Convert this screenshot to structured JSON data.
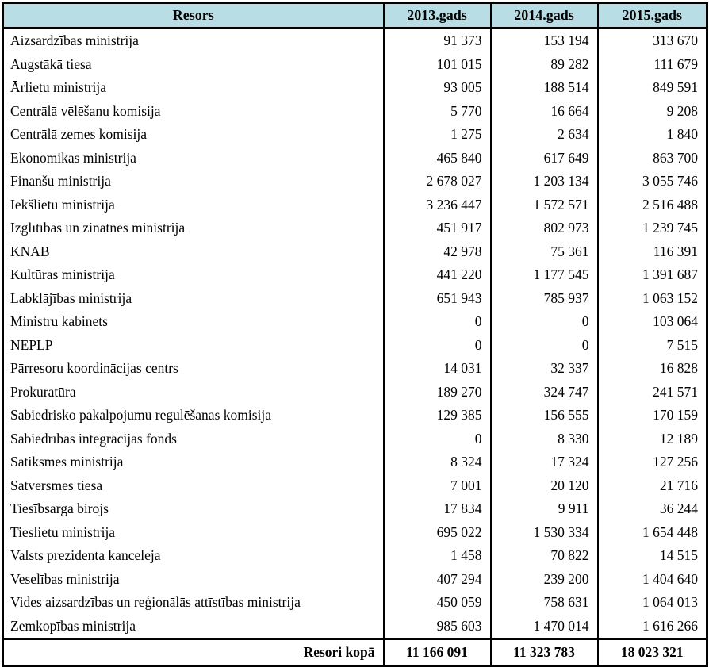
{
  "colors": {
    "header_background": "#b8dde4",
    "border": "#000000",
    "page_background": "#ffffff",
    "text": "#000000"
  },
  "chart_data": {
    "type": "table",
    "title": "",
    "columns": [
      "Resors",
      "2013.gads",
      "2014.gads",
      "2015.gads"
    ],
    "rows": [
      {
        "name": "Aizsardzības ministrija",
        "values": [
          "91 373",
          "153 194",
          "313 670"
        ]
      },
      {
        "name": "Augstākā tiesa",
        "values": [
          "101 015",
          "89 282",
          "111 679"
        ]
      },
      {
        "name": "Ārlietu ministrija",
        "values": [
          "93 005",
          "188 514",
          "849 591"
        ]
      },
      {
        "name": "Centrālā vēlēšanu komisija",
        "values": [
          "5 770",
          "16 664",
          "9 208"
        ]
      },
      {
        "name": "Centrālā zemes komisija",
        "values": [
          "1 275",
          "2 634",
          "1 840"
        ]
      },
      {
        "name": "Ekonomikas ministrija",
        "values": [
          "465 840",
          "617 649",
          "863 700"
        ]
      },
      {
        "name": "Finanšu ministrija",
        "values": [
          "2 678 027",
          "1 203 134",
          "3 055 746"
        ]
      },
      {
        "name": "Iekšlietu ministrija",
        "values": [
          "3 236 447",
          "1 572 571",
          "2 516 488"
        ]
      },
      {
        "name": "Izglītības un zinātnes ministrija",
        "values": [
          "451 917",
          "802 973",
          "1 239 745"
        ]
      },
      {
        "name": "KNAB",
        "values": [
          "42 978",
          "75 361",
          "116 391"
        ]
      },
      {
        "name": "Kultūras ministrija",
        "values": [
          "441 220",
          "1 177 545",
          "1 391 687"
        ]
      },
      {
        "name": "Labklājības ministrija",
        "values": [
          "651 943",
          "785 937",
          "1 063 152"
        ]
      },
      {
        "name": "Ministru kabinets",
        "values": [
          "0",
          "0",
          "103 064"
        ]
      },
      {
        "name": "NEPLP",
        "values": [
          "0",
          "0",
          "7 515"
        ]
      },
      {
        "name": "Pārresoru koordinācijas centrs",
        "values": [
          "14 031",
          "32 337",
          "16 828"
        ]
      },
      {
        "name": "Prokuratūra",
        "values": [
          "189 270",
          "324 747",
          "241 571"
        ]
      },
      {
        "name": "Sabiedrisko pakalpojumu regulēšanas komisija",
        "values": [
          "129 385",
          "156 555",
          "170 159"
        ]
      },
      {
        "name": "Sabiedrības integrācijas fonds",
        "values": [
          "0",
          "8 330",
          "12 189"
        ]
      },
      {
        "name": "Satiksmes ministrija",
        "values": [
          "8 324",
          "17 324",
          "127 256"
        ]
      },
      {
        "name": "Satversmes tiesa",
        "values": [
          "7 001",
          "20 120",
          "21 716"
        ]
      },
      {
        "name": "Tiesībsarga birojs",
        "values": [
          "17 834",
          "9 911",
          "36 244"
        ]
      },
      {
        "name": "Tieslietu ministrija",
        "values": [
          "695 022",
          "1 530 334",
          "1 654 448"
        ]
      },
      {
        "name": "Valsts prezidenta kanceleja",
        "values": [
          "1 458",
          "70 822",
          "14 515"
        ]
      },
      {
        "name": "Veselības ministrija",
        "values": [
          "407 294",
          "239 200",
          "1 404 640"
        ]
      },
      {
        "name": "Vides aizsardzības un reģionālās attīstības ministrija",
        "values": [
          "450 059",
          "758 631",
          "1 064 013"
        ]
      },
      {
        "name": "Zemkopības ministrija",
        "values": [
          "985 603",
          "1 470 014",
          "1 616 266"
        ]
      }
    ],
    "total": {
      "label": "Resori kopā",
      "values": [
        "11 166 091",
        "11 323 783",
        "18 023 321"
      ]
    },
    "layout": {
      "header_background": "#b8dde4",
      "grid": "vertical-only-in-body",
      "number_alignment": "right",
      "total_alignment": "center"
    }
  }
}
